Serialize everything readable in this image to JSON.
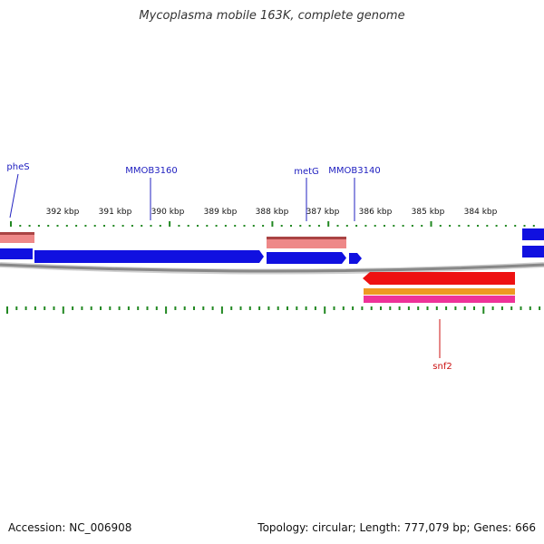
{
  "title": "Mycoplasma mobile 163K, complete genome",
  "footer": {
    "accession": "Accession: NC_006908",
    "summary": "Topology: circular; Length: 777,079 bp; Genes: 666"
  },
  "colors": {
    "forward_gene": "#1010e0",
    "forward_gene_label": "#2020c0",
    "reverse_gene": "#ee1111",
    "reverse_gene_label": "#cc1111",
    "rna_pink": "#ee8888",
    "orange": "#ee9922",
    "magenta": "#ee3399",
    "tick": "#228822",
    "backbone": "#888888"
  },
  "kbp_labels": [
    "392 kbp",
    "391 kbp",
    "390 kbp",
    "389 kbp",
    "388 kbp",
    "387 kbp",
    "386 kbp",
    "385 kbp",
    "384 kbp"
  ],
  "gene_labels": [
    {
      "name": "pheS",
      "strand": "forward"
    },
    {
      "name": "MMOB3160",
      "strand": "forward"
    },
    {
      "name": "metG",
      "strand": "forward"
    },
    {
      "name": "MMOB3140",
      "strand": "forward"
    },
    {
      "name": "snf2",
      "strand": "reverse"
    }
  ]
}
